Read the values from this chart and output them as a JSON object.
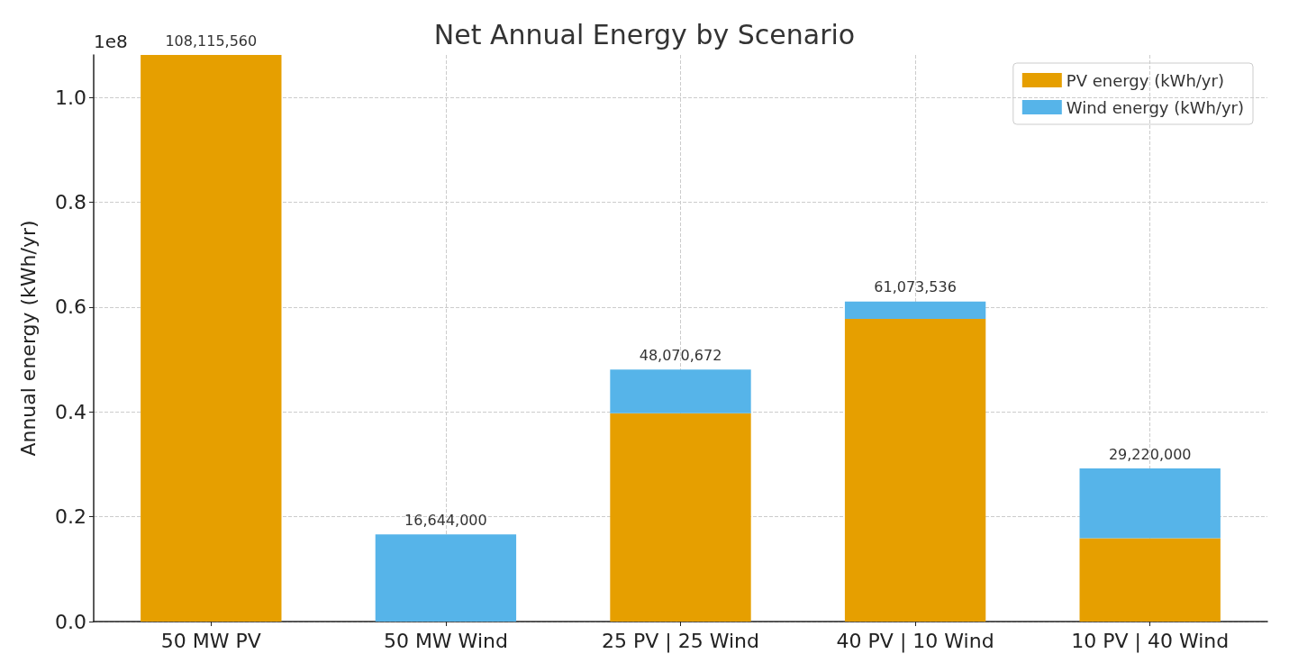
{
  "chart_data": {
    "type": "bar",
    "title": "Net Annual Energy by Scenario",
    "ylabel": "Annual energy (kWh/yr)",
    "categories": [
      "50 MW PV",
      "50 MW Wind",
      "25 PV | 25 Wind",
      "40 PV | 10 Wind",
      "10 PV | 40 Wind"
    ],
    "series": [
      {
        "name": "PV energy (kWh/yr)",
        "color": "#e69f00",
        "values": [
          1.0811556,
          0,
          0.39748672,
          0.57744736,
          0.159048
        ]
      },
      {
        "name": "Wind energy (kWh/yr)",
        "color": "#56b4e9",
        "values": [
          0,
          0.16644,
          0.08322,
          0.033288,
          0.133152
        ]
      }
    ],
    "stacked": true,
    "ylim": [
      0,
      1.0811556
    ],
    "yticks": [
      {
        "value": 0,
        "label": "0.0"
      },
      0.2,
      0.4,
      0.6,
      0.8,
      {
        "value": 1,
        "label": "1.0"
      }
    ],
    "annotations": [
      "1e8",
      {
        "text": "108,115,560",
        "x": "50 MW PV",
        "y": 1.0811556
      },
      {
        "text": "16,644,000",
        "x": "50 MW Wind",
        "y": 0.16644
      },
      {
        "text": "48,070,672",
        "x": "25 PV | 25 Wind",
        "y": 0.48070672
      },
      {
        "text": "61,073,536",
        "x": "40 PV | 10 Wind",
        "y": 0.61073536
      },
      {
        "text": "29,220,000",
        "x": "10 PV | 40 Wind",
        "y": 0.2922
      }
    ],
    "grid": true,
    "legend": "top right"
  }
}
